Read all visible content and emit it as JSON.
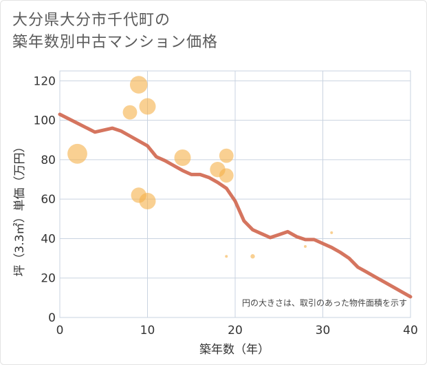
{
  "chart_data": {
    "type": "scatter",
    "title_lines": [
      "大分県大分市千代町の",
      "築年数別中古マンション価格"
    ],
    "xlabel": "築年数（年）",
    "ylabel": "坪（3.3㎡）単価（万円）",
    "xlim": [
      0,
      40
    ],
    "ylim": [
      0,
      125
    ],
    "xticks": [
      0,
      10,
      20,
      30,
      40
    ],
    "yticks": [
      0,
      20,
      40,
      60,
      80,
      100,
      120
    ],
    "note": "円の大きさは、取引のあった物件面積を示す",
    "colors": {
      "bubble": "#f5b04a",
      "line": "#d0664e",
      "grid": "#c9d3e0",
      "plot_border": "#c9d3e0"
    },
    "points": [
      {
        "x": 2,
        "y": 83,
        "size": 3.6
      },
      {
        "x": 8,
        "y": 104,
        "size": 2.6
      },
      {
        "x": 9,
        "y": 118,
        "size": 3.2
      },
      {
        "x": 9,
        "y": 62,
        "size": 2.8
      },
      {
        "x": 10,
        "y": 107,
        "size": 3.0
      },
      {
        "x": 10,
        "y": 59,
        "size": 3.0
      },
      {
        "x": 14,
        "y": 81,
        "size": 3.0
      },
      {
        "x": 18,
        "y": 75,
        "size": 2.8
      },
      {
        "x": 19,
        "y": 82,
        "size": 2.6
      },
      {
        "x": 19,
        "y": 72,
        "size": 2.6
      },
      {
        "x": 19,
        "y": 31,
        "size": 0.5
      },
      {
        "x": 22,
        "y": 31,
        "size": 0.8
      },
      {
        "x": 28,
        "y": 36,
        "size": 0.5
      },
      {
        "x": 31,
        "y": 43,
        "size": 0.5
      }
    ],
    "trend": {
      "x": [
        0,
        2,
        4,
        6,
        7,
        8,
        9,
        10,
        11,
        12,
        13,
        14,
        15,
        16,
        17,
        18,
        19,
        20,
        21,
        22,
        24,
        25,
        26,
        27,
        28,
        29,
        30,
        31,
        32,
        33,
        34,
        35,
        36,
        37,
        38,
        39,
        40
      ],
      "y": [
        103,
        98.5,
        94,
        96,
        94.5,
        92,
        89.5,
        87,
        81.5,
        79.5,
        77,
        74.5,
        72.5,
        72.5,
        71,
        68.5,
        65.5,
        59,
        49,
        44.5,
        40.5,
        42,
        43.5,
        41,
        39.5,
        39.5,
        37.5,
        35.5,
        33,
        30,
        25.5,
        23,
        20.5,
        18,
        15.5,
        13,
        10.5
      ]
    }
  }
}
